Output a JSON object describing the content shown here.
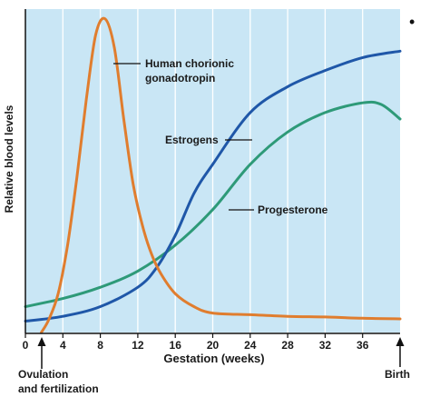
{
  "bullet_glyph": "•",
  "chart_data": {
    "type": "line",
    "title": "",
    "xlabel": "Gestation (weeks)",
    "ylabel": "Relative blood levels",
    "xlim": [
      0,
      40
    ],
    "ylim": [
      0,
      100
    ],
    "xticks": [
      0,
      4,
      8,
      12,
      16,
      20,
      24,
      28,
      32,
      36
    ],
    "grid": "vertical",
    "background_color": "#c9e6f5",
    "series": [
      {
        "name": "Human chorionic gonadotropin",
        "color": "#e07d2e",
        "x": [
          1.7,
          2.5,
          3.5,
          4.5,
          5.5,
          6.5,
          7.5,
          8.5,
          9.5,
          10.5,
          11.5,
          12.5,
          13.5,
          14.5,
          16,
          18,
          20,
          24,
          28,
          32,
          36,
          40
        ],
        "y": [
          0,
          4,
          12,
          27,
          48,
          72,
          92,
          97,
          88,
          66,
          46,
          33,
          24,
          18,
          12,
          8,
          6,
          5.5,
          5,
          4.8,
          4.4,
          4.2
        ]
      },
      {
        "name": "Estrogens",
        "color": "#1f57a8",
        "x": [
          0,
          4,
          8,
          12,
          14,
          16,
          18,
          20,
          24,
          28,
          32,
          36,
          40
        ],
        "y": [
          3.5,
          5,
          8,
          14,
          20,
          30,
          43,
          52,
          68,
          76,
          81,
          85,
          87
        ]
      },
      {
        "name": "Progesterone",
        "color": "#2e9a78",
        "x": [
          0,
          4,
          8,
          12,
          16,
          20,
          24,
          28,
          32,
          36,
          38,
          40
        ],
        "y": [
          8,
          10.5,
          14,
          19,
          27,
          38,
          52,
          62,
          68,
          71,
          70.5,
          66
        ]
      }
    ],
    "annotations": [
      {
        "text_lines": [
          "Human chorionic",
          "gonadotropin"
        ],
        "series": "Human chorionic gonadotropin"
      },
      {
        "text_lines": [
          "Estrogens"
        ],
        "series": "Estrogens"
      },
      {
        "text_lines": [
          "Progesterone"
        ],
        "series": "Progesterone"
      }
    ],
    "events": [
      {
        "x": 2,
        "text_lines": [
          "Ovulation",
          "and fertilization"
        ]
      },
      {
        "x": 40,
        "text_lines": [
          "Birth"
        ]
      }
    ]
  }
}
